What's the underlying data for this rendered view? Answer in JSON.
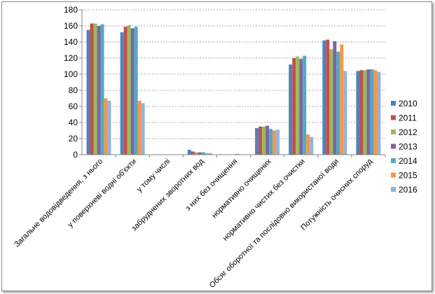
{
  "chart_data": {
    "type": "bar",
    "title": "",
    "xlabel": "",
    "ylabel": "",
    "ylim": [
      0,
      180
    ],
    "yticks": [
      0,
      20,
      40,
      60,
      80,
      100,
      120,
      140,
      160,
      180
    ],
    "grid": true,
    "legend_position": "right",
    "categories": [
      "Загальне водовідведення, з нього",
      "у поверхневі водні об'єкти",
      "у тому числі",
      "забруднених зворотних вод",
      "з них без очищення",
      "нормативно очищених",
      "нормативно чистих без очистки",
      "Обсяг оборотної та послідовно використаної води",
      "Потужність очисних споруд"
    ],
    "series": [
      {
        "name": "2010",
        "color": "#4F81BD",
        "values": [
          155,
          152,
          null,
          6,
          0,
          33,
          112,
          142,
          104
        ]
      },
      {
        "name": "2011",
        "color": "#C0504D",
        "values": [
          163,
          159,
          null,
          4,
          0,
          35,
          120,
          143,
          105
        ]
      },
      {
        "name": "2012",
        "color": "#9BBB59",
        "values": [
          163,
          161,
          null,
          3,
          0,
          35,
          122,
          131,
          105
        ]
      },
      {
        "name": "2013",
        "color": "#8064A2",
        "values": [
          160,
          157,
          null,
          3,
          0,
          36,
          119,
          141,
          106
        ]
      },
      {
        "name": "2014",
        "color": "#4BACC6",
        "values": [
          162,
          159,
          null,
          3,
          1,
          32,
          123,
          128,
          106
        ]
      },
      {
        "name": "2015",
        "color": "#F79646",
        "values": [
          70,
          67,
          null,
          2,
          0,
          30,
          25,
          137,
          105
        ]
      },
      {
        "name": "2016",
        "color": "#95B3D7",
        "values": [
          67,
          64,
          null,
          2,
          0,
          31,
          22,
          104,
          103
        ]
      }
    ]
  }
}
